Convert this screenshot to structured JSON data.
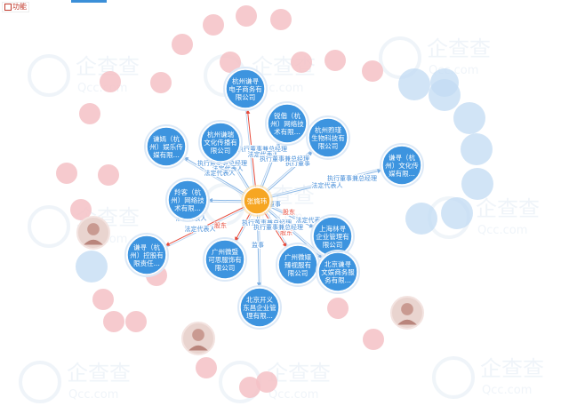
{
  "toolbar": {
    "label": "功能",
    "icon": "expand-icon"
  },
  "watermark": {
    "logo_text": "企查查",
    "domain_text": "Qcc.com"
  },
  "colors": {
    "company": "#3d94df",
    "company_stroke": "#ffffff",
    "person_center": "#f6a623",
    "edge": "#88b6e6",
    "edge_text": "#4a90d9",
    "edge_red": "#e74c3c",
    "faded_red": "#f5c1c6",
    "faded_blue": "#c2dbf3"
  },
  "graph": {
    "center": {
      "id": "p",
      "label": "张旖玮"
    },
    "companies": [
      {
        "id": "c1",
        "lines": [
          "杭州谦寻",
          "电子商务有",
          "限公司"
        ]
      },
      {
        "id": "c2",
        "lines": [
          "杭州谦瑞",
          "文化传播有",
          "限公司"
        ]
      },
      {
        "id": "c3",
        "lines": [
          "锐偕（杭",
          "州）网络技",
          "术有限..."
        ]
      },
      {
        "id": "c4",
        "lines": [
          "杭州煦瑾",
          "生物科技有",
          "限公司"
        ]
      },
      {
        "id": "c5",
        "lines": [
          "谦嫣（杭",
          "州）娱乐传",
          "媒有限..."
        ]
      },
      {
        "id": "c6",
        "lines": [
          "谦寻（杭",
          "州）文化传",
          "媒有限..."
        ]
      },
      {
        "id": "c7",
        "lines": [
          "羚客（杭",
          "州）网络技",
          "术有限..."
        ]
      },
      {
        "id": "c8",
        "lines": [
          "上海林寻",
          "企业管理有",
          "限公司"
        ]
      },
      {
        "id": "c9",
        "lines": [
          "谦寻（杭",
          "州）控股有",
          "限责任..."
        ]
      },
      {
        "id": "c10",
        "lines": [
          "广州微暨",
          "可思服饰有",
          "限公司"
        ]
      },
      {
        "id": "c11",
        "lines": [
          "广州微嬛",
          "臻视服有",
          "限公司"
        ]
      },
      {
        "id": "c12",
        "lines": [
          "北京谦寻",
          "文娱商务服",
          "务有限..."
        ]
      },
      {
        "id": "c13",
        "lines": [
          "北京开义",
          "东昌企业管",
          "理有限..."
        ]
      }
    ],
    "edge_labels": [
      {
        "id": "e1",
        "text": "执行董事兼总经理"
      },
      {
        "id": "e2",
        "text": "法定代表人"
      },
      {
        "id": "e3",
        "text": "执行董事兼总经理"
      },
      {
        "id": "e4",
        "text": "法定代表人"
      },
      {
        "id": "e5",
        "text": "执行董事"
      },
      {
        "id": "e6",
        "text": "执行董事兼总经理"
      },
      {
        "id": "e7",
        "text": "法定代表人"
      },
      {
        "id": "e8",
        "text": "执行董事兼总经理"
      },
      {
        "id": "e9",
        "text": "法定代表人"
      },
      {
        "id": "e10",
        "text": "执行董事"
      },
      {
        "id": "e11",
        "text": "股东"
      },
      {
        "id": "e12",
        "text": "法定代表人"
      },
      {
        "id": "e13",
        "text": "执行董事兼总经理"
      },
      {
        "id": "e14",
        "text": "法定代表人"
      },
      {
        "id": "e15",
        "text": "监事"
      },
      {
        "id": "e16",
        "text": "股东"
      },
      {
        "id": "e17",
        "text": "法定代表人"
      },
      {
        "id": "e18",
        "text": "执行董事兼总经理"
      },
      {
        "id": "e19",
        "text": "股东"
      }
    ],
    "faded_nodes": [
      {
        "id": "f1",
        "kind": "red"
      },
      {
        "id": "f2",
        "kind": "red"
      },
      {
        "id": "f3",
        "kind": "red"
      },
      {
        "id": "f4",
        "kind": "red"
      },
      {
        "id": "f5",
        "kind": "red"
      },
      {
        "id": "f6",
        "kind": "red"
      },
      {
        "id": "f7",
        "kind": "red"
      },
      {
        "id": "f8",
        "kind": "red"
      },
      {
        "id": "f9",
        "kind": "red"
      },
      {
        "id": "f10",
        "kind": "red"
      },
      {
        "id": "f11",
        "kind": "red"
      },
      {
        "id": "f12",
        "kind": "red"
      },
      {
        "id": "f13",
        "kind": "red"
      },
      {
        "id": "f14",
        "kind": "red"
      },
      {
        "id": "f15",
        "kind": "red"
      },
      {
        "id": "f16",
        "kind": "red"
      },
      {
        "id": "f17",
        "kind": "red"
      },
      {
        "id": "f18",
        "kind": "red"
      },
      {
        "id": "f19",
        "kind": "red"
      },
      {
        "id": "f20",
        "kind": "red"
      },
      {
        "id": "f21",
        "kind": "red"
      },
      {
        "id": "f22",
        "kind": "red"
      },
      {
        "id": "f23",
        "kind": "red"
      },
      {
        "id": "b1",
        "kind": "blue"
      },
      {
        "id": "b2",
        "kind": "blue"
      },
      {
        "id": "b3",
        "kind": "blue"
      },
      {
        "id": "b4",
        "kind": "blue"
      },
      {
        "id": "b5",
        "kind": "blue"
      },
      {
        "id": "b6",
        "kind": "blue"
      },
      {
        "id": "b7",
        "kind": "blue"
      },
      {
        "id": "b8",
        "kind": "blue"
      },
      {
        "id": "b9",
        "kind": "blue"
      },
      {
        "id": "ph1",
        "kind": "photo"
      },
      {
        "id": "ph2",
        "kind": "photo"
      },
      {
        "id": "ph3",
        "kind": "photo"
      }
    ]
  }
}
